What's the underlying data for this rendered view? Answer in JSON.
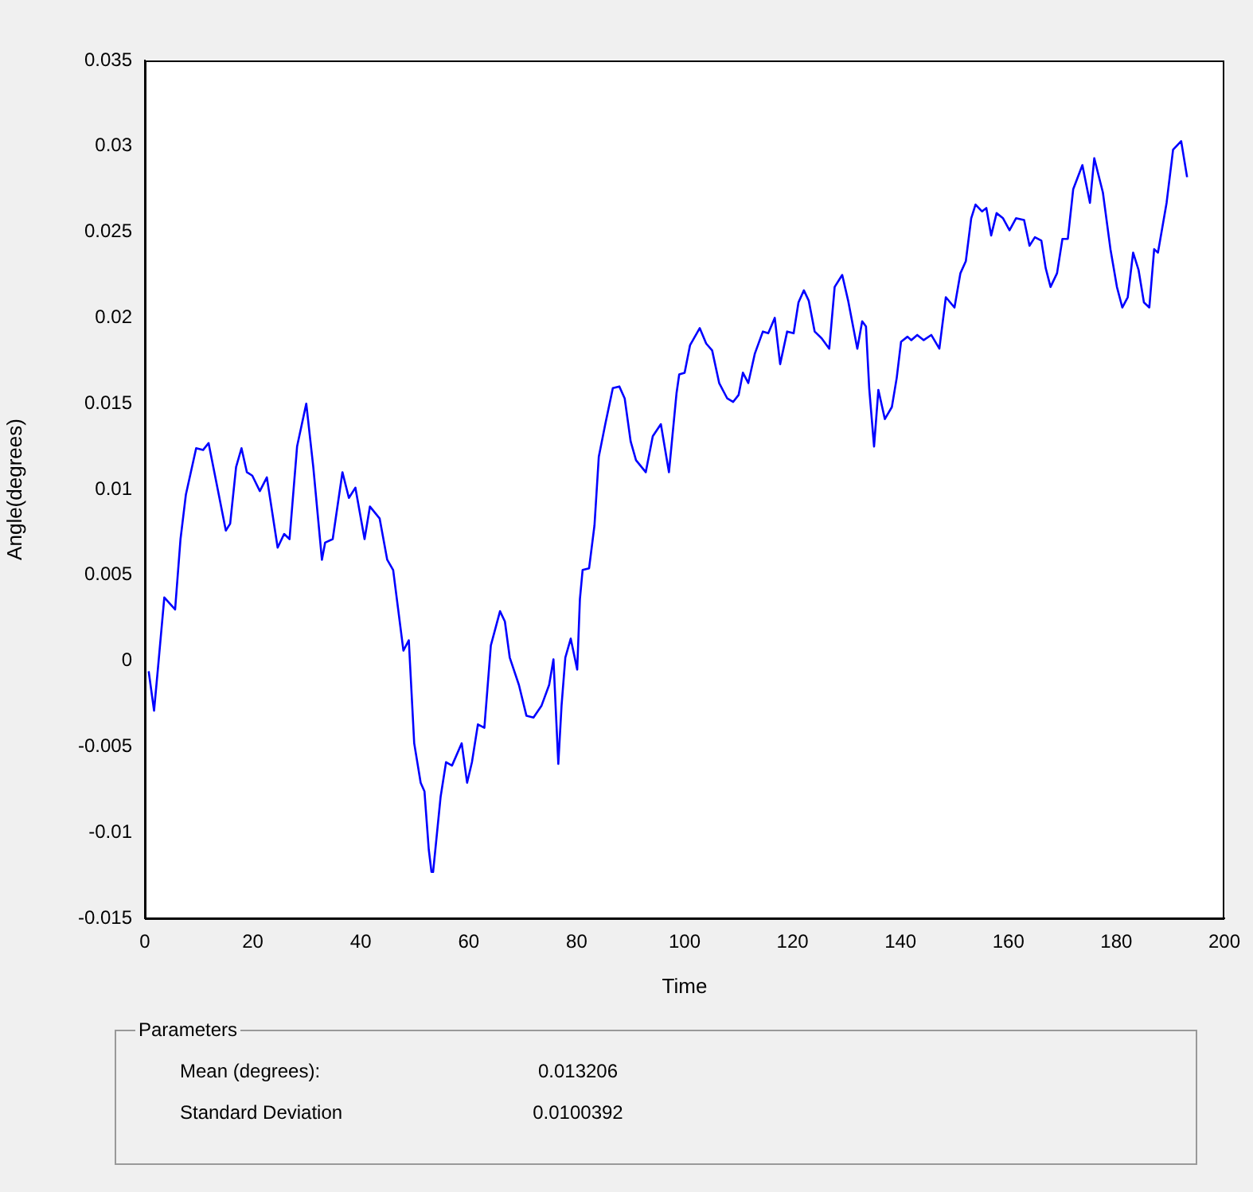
{
  "chart_data": {
    "type": "line",
    "xlabel": "Time",
    "ylabel": "Angle(degrees)",
    "xlim": [
      0,
      200
    ],
    "xticks": [
      0,
      20,
      40,
      60,
      80,
      100,
      120,
      140,
      160,
      180,
      200
    ],
    "ylim": [
      -0.015,
      0.035
    ],
    "yticks": [
      -0.015,
      -0.01,
      -0.005,
      0,
      0.005,
      0.01,
      0.015,
      0.02,
      0.025,
      0.03,
      0.035
    ],
    "series": [
      {
        "color": "#0000ff",
        "x": [
          0.7,
          1.7,
          2.4,
          3.6,
          5.6,
          6.6,
          7.6,
          9.5,
          10.8,
          11.8,
          13.5,
          15,
          15.8,
          16.9,
          17.9,
          18.9,
          19.9,
          21.3,
          22.6,
          24.6,
          25.8,
          26.8,
          28.2,
          29.9,
          31.2,
          32.8,
          33.4,
          34.8,
          36.6,
          37.8,
          39,
          40.7,
          41.7,
          43.5,
          44.9,
          46,
          47.9,
          48.9,
          49.9,
          51.1,
          51.8,
          52.6,
          53.1,
          53.4,
          54.8,
          55.8,
          56.9,
          58.7,
          59.7,
          60.6,
          61.7,
          62.9,
          64.1,
          65.8,
          66.7,
          67.6,
          69.3,
          70.7,
          72,
          73.5,
          74.9,
          75.7,
          76.6,
          77.2,
          77.9,
          78.9,
          80.1,
          80.6,
          81.1,
          82.3,
          83.3,
          84.1,
          85.3,
          86.7,
          87.9,
          88.9,
          90,
          91,
          92.8,
          94.1,
          95.6,
          97.1,
          98.5,
          99,
          100,
          101,
          102.8,
          104,
          105.1,
          106.4,
          107.9,
          109,
          110,
          110.8,
          111.8,
          113,
          114.5,
          115.5,
          116.7,
          117.7,
          119,
          120.2,
          121.1,
          122.1,
          123,
          124.1,
          125.4,
          126.8,
          127.8,
          129.2,
          130.3,
          132,
          132.9,
          133.6,
          134.2,
          135.1,
          135.9,
          137.1,
          138.4,
          139.3,
          140.1,
          141.3,
          142,
          143.1,
          144.3,
          145.7,
          147.2,
          148.4,
          150,
          151.1,
          152.1,
          153.1,
          153.9,
          155.1,
          155.9,
          156.8,
          157.8,
          159,
          160.2,
          161.4,
          162.9,
          163.9,
          164.9,
          166.1,
          166.9,
          167.8,
          169,
          170,
          171,
          172,
          173.7,
          175.1,
          175.9,
          177.5,
          178.9,
          180.1,
          181.1,
          182.1,
          183.1,
          184.1,
          185.1,
          186.1,
          187,
          187.7,
          189.3,
          190.5,
          192,
          193.1
        ],
        "values": [
          -0.0006,
          -0.0029,
          -0.0005,
          0.0037,
          0.003,
          0.0071,
          0.0097,
          0.0124,
          0.0123,
          0.0127,
          0.01,
          0.0076,
          0.008,
          0.0113,
          0.0124,
          0.011,
          0.0108,
          0.0099,
          0.0107,
          0.0066,
          0.0074,
          0.0071,
          0.0125,
          0.015,
          0.0113,
          0.0059,
          0.0069,
          0.0071,
          0.011,
          0.0095,
          0.0101,
          0.0071,
          0.009,
          0.0083,
          0.0059,
          0.0053,
          0.0006,
          0.0012,
          -0.0048,
          -0.0071,
          -0.0076,
          -0.011,
          -0.0123,
          -0.0123,
          -0.0079,
          -0.0059,
          -0.0061,
          -0.0048,
          -0.0071,
          -0.0059,
          -0.0037,
          -0.0039,
          0.0009,
          0.0029,
          0.0023,
          0.0002,
          -0.0014,
          -0.0032,
          -0.0033,
          -0.0026,
          -0.0014,
          0.0001,
          -0.006,
          -0.0026,
          0.0002,
          0.0013,
          -0.0005,
          0.0036,
          0.0053,
          0.0054,
          0.0079,
          0.0119,
          0.0138,
          0.0159,
          0.016,
          0.0153,
          0.0128,
          0.0117,
          0.011,
          0.0131,
          0.0138,
          0.011,
          0.0156,
          0.0167,
          0.0168,
          0.0184,
          0.0194,
          0.0185,
          0.0181,
          0.0162,
          0.0153,
          0.0151,
          0.0155,
          0.0168,
          0.0162,
          0.0179,
          0.0192,
          0.0191,
          0.02,
          0.0173,
          0.0192,
          0.0191,
          0.0209,
          0.0216,
          0.021,
          0.0192,
          0.0188,
          0.0182,
          0.0218,
          0.0225,
          0.021,
          0.0182,
          0.0198,
          0.0195,
          0.0159,
          0.0125,
          0.0158,
          0.0141,
          0.0148,
          0.0165,
          0.0186,
          0.0189,
          0.0187,
          0.019,
          0.0187,
          0.019,
          0.0182,
          0.0212,
          0.0206,
          0.0226,
          0.0233,
          0.0258,
          0.0266,
          0.0262,
          0.0264,
          0.0248,
          0.0261,
          0.0258,
          0.0251,
          0.0258,
          0.0257,
          0.0242,
          0.0247,
          0.0245,
          0.0229,
          0.0218,
          0.0226,
          0.0246,
          0.0246,
          0.0275,
          0.0289,
          0.0267,
          0.0293,
          0.0273,
          0.024,
          0.0218,
          0.0206,
          0.0212,
          0.0238,
          0.0228,
          0.0209,
          0.0206,
          0.024,
          0.0238,
          0.0267,
          0.0298,
          0.0303,
          0.0282
        ]
      }
    ],
    "annotations": [
      "Parameters",
      "Mean (degrees):",
      "0.013206",
      "Standard Deviation",
      "0.0100392"
    ]
  }
}
